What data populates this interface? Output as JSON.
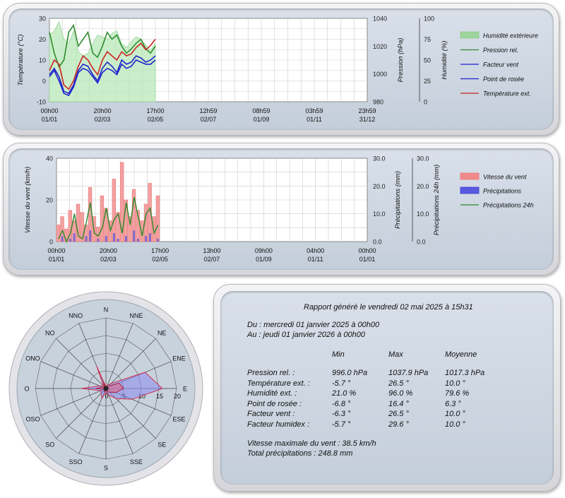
{
  "chart_data": [
    {
      "type": "line",
      "name": "temperature-chart",
      "ylabel_left": "Température (°C)",
      "ylim_left": [
        -10,
        30
      ],
      "yticks_left": [
        "30",
        "20",
        "10",
        "0",
        "-10"
      ],
      "ylabel_mid": "Pression (hPa)",
      "ylim_mid": [
        980,
        1040
      ],
      "yticks_mid": [
        "1040",
        "1020",
        "1000",
        "980"
      ],
      "ylabel_right": "Humidité (%)",
      "ylim_right": [
        0,
        100
      ],
      "yticks_right": [
        "100",
        "75",
        "50",
        "25",
        "0"
      ],
      "x_ticks": [
        [
          "00h00",
          "01/01"
        ],
        [
          "20h00",
          "02/03"
        ],
        [
          "17h00",
          "02/05"
        ],
        [
          "12h59",
          "02/07"
        ],
        [
          "08h59",
          "01/09"
        ],
        [
          "03h59",
          "01/11"
        ],
        [
          "23h59",
          "31/12"
        ]
      ],
      "legend": [
        "Humidité extérieure",
        "Pression rel.",
        "Facteur vent",
        "Point de rosée",
        "Température ext."
      ],
      "colors": [
        "#90c890",
        "#2e8b2e",
        "#2222cc",
        "#2222cc",
        "#cc2222"
      ],
      "series": [
        {
          "name": "Humidité extérieure",
          "axis": "right",
          "values": [
            80,
            85,
            96,
            75,
            70,
            85,
            60,
            55,
            58,
            70,
            80,
            78,
            75,
            82,
            85,
            70,
            65,
            72,
            78,
            75,
            68,
            62,
            70
          ]
        },
        {
          "name": "Pression rel.",
          "axis": "mid",
          "values": [
            1030,
            1015,
            1005,
            1010,
            1030,
            1035,
            1020,
            1025,
            1030,
            1015,
            1012,
            1020,
            1030,
            1025,
            1028,
            1020,
            1015,
            1018,
            1022,
            1025,
            1018,
            1015,
            1020
          ]
        },
        {
          "name": "Facteur vent",
          "axis": "left",
          "values": [
            3,
            6,
            2,
            -5,
            -6,
            -2,
            5,
            8,
            7,
            3,
            0,
            6,
            9,
            7,
            4,
            10,
            8,
            9,
            12,
            11,
            9,
            10,
            12
          ]
        },
        {
          "name": "Point de rosée",
          "axis": "left",
          "values": [
            2,
            5,
            0,
            -6,
            -7,
            -3,
            4,
            6,
            5,
            2,
            -1,
            4,
            6,
            5,
            3,
            8,
            6,
            7,
            10,
            9,
            8,
            8,
            10
          ]
        },
        {
          "name": "Température ext.",
          "axis": "left",
          "values": [
            5,
            10,
            8,
            -2,
            -4,
            0,
            7,
            12,
            10,
            6,
            3,
            10,
            14,
            12,
            10,
            14,
            12,
            13,
            16,
            18,
            15,
            17,
            20
          ]
        }
      ]
    },
    {
      "type": "bar",
      "name": "wind-rain-chart",
      "ylabel_left": "Vitesse du vent (km/h)",
      "ylim_left": [
        0,
        40
      ],
      "yticks_left": [
        "40",
        "20",
        "0"
      ],
      "ylabel_mid": "Précipitations (mm)",
      "ylim_mid": [
        0,
        30
      ],
      "yticks_mid": [
        "30.0",
        "20.0",
        "10.0",
        "0.0"
      ],
      "ylabel_right": "Précipitations 24h (mm)",
      "ylim_right": [
        0,
        30
      ],
      "yticks_right": [
        "30.0",
        "20.0",
        "10.0",
        "0.0"
      ],
      "x_ticks": [
        [
          "00h00",
          "01/01"
        ],
        [
          "20h00",
          "02/03"
        ],
        [
          "17h00",
          "02/05"
        ],
        [
          "13h00",
          "02/07"
        ],
        [
          "09h00",
          "01/09"
        ],
        [
          "04h00",
          "01/11"
        ],
        [
          "00h00",
          "01/01"
        ]
      ],
      "legend": [
        "Vitesse du vent",
        "Précipitations",
        "Précipitations 24h"
      ],
      "colors": [
        "#e87878",
        "#3a3ad0",
        "#2a8a2a"
      ],
      "series": [
        {
          "name": "Vitesse du vent",
          "axis": "left",
          "values": [
            8,
            12,
            6,
            15,
            10,
            18,
            14,
            8,
            26,
            12,
            7,
            22,
            16,
            10,
            30,
            14,
            38,
            20,
            12,
            25,
            15,
            10,
            18,
            28,
            12,
            22
          ]
        },
        {
          "name": "Précipitations",
          "axis": "mid",
          "values": [
            0,
            2,
            0,
            1,
            3,
            0,
            0,
            2,
            4,
            0,
            1,
            0,
            2,
            0,
            3,
            1,
            0,
            2,
            0,
            4,
            1,
            0,
            2,
            3,
            0,
            1
          ]
        },
        {
          "name": "Précipitations 24h",
          "axis": "right",
          "values": [
            1,
            4,
            0,
            3,
            10,
            2,
            1,
            7,
            14,
            3,
            2,
            5,
            12,
            4,
            8,
            10,
            3,
            14,
            6,
            16,
            9,
            2,
            10,
            12,
            3,
            6
          ]
        }
      ]
    },
    {
      "type": "radar",
      "name": "wind-rose",
      "directions": [
        "N",
        "NNE",
        "NE",
        "ENE",
        "E",
        "ESE",
        "SE",
        "SSE",
        "S",
        "SSO",
        "SO",
        "OSO",
        "O",
        "ONO",
        "NO",
        "NNO"
      ],
      "radial_ticks": [
        "0",
        "5",
        "10",
        "15",
        "20"
      ],
      "rmax": 20,
      "series": [
        {
          "name": "max",
          "values": [
            0.5,
            1,
            2,
            12,
            16,
            8,
            4,
            2,
            1,
            3,
            2,
            1.5,
            7,
            2,
            1,
            7
          ]
        },
        {
          "name": "mean",
          "values": [
            0.2,
            0.5,
            1,
            4,
            5,
            3,
            1.5,
            1,
            0.5,
            1,
            0.8,
            0.5,
            3,
            1,
            0.5,
            2
          ]
        }
      ]
    }
  ],
  "report": {
    "title": "Rapport généré le vendredi 02 mai 2025 à 15h31",
    "from": "Du : mercredi 01 janvier 2025 à 00h00",
    "to": "Au : jeudi 01 janvier 2026 à 00h00",
    "col_min": "Min",
    "col_max": "Max",
    "col_avg": "Moyenne",
    "rows": [
      {
        "label": "Pression rel. :",
        "min": "996.0 hPa",
        "max": "1037.9 hPa",
        "avg": "1017.3 hPa"
      },
      {
        "label": "Température ext. :",
        "min": "-5.7 °",
        "max": "26.5 °",
        "avg": "10.0 °"
      },
      {
        "label": "Humidité ext. :",
        "min": "21.0 %",
        "max": "96.0 %",
        "avg": "79.6 %"
      },
      {
        "label": "Point de rosée :",
        "min": "-6.8 °",
        "max": "16.4 °",
        "avg": "6.3 °"
      },
      {
        "label": "Facteur vent :",
        "min": "-6.3 °",
        "max": "26.5 °",
        "avg": "10.0 °"
      },
      {
        "label": "Facteur humidex :",
        "min": "-5.7 °",
        "max": "29.6 °",
        "avg": "10.0 °"
      }
    ],
    "max_wind": "Vitesse maximale du vent : 38.5 km/h",
    "total_rain": "Total précipitations : 248.8 mm"
  }
}
